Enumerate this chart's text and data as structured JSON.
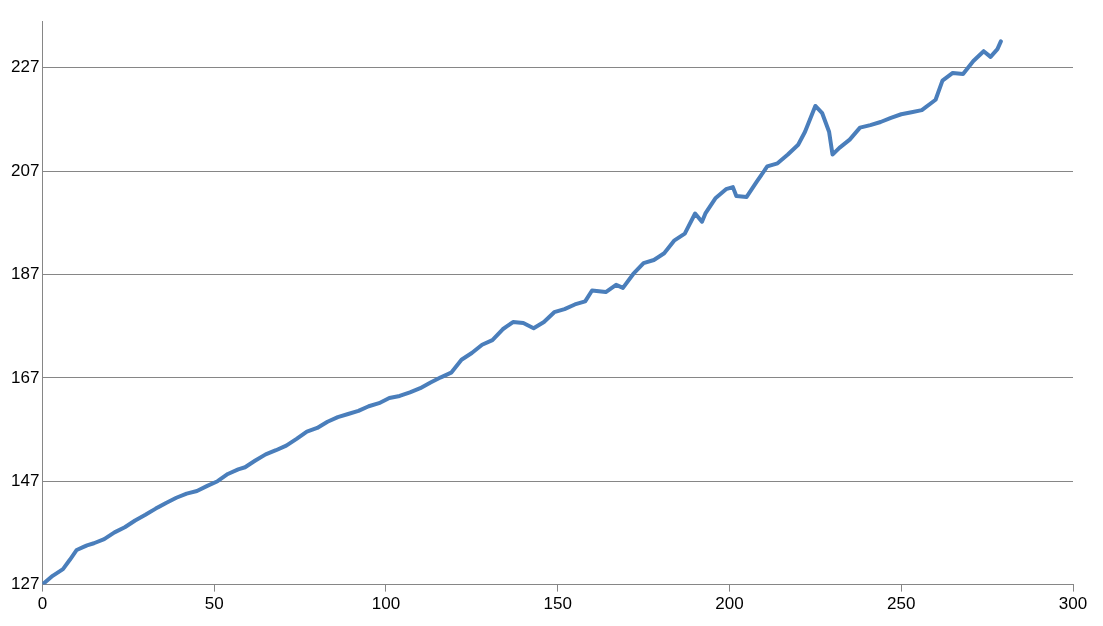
{
  "chart_data": {
    "type": "line",
    "xlim": [
      0,
      300
    ],
    "xticks": [
      0,
      50,
      100,
      150,
      200,
      250,
      300
    ],
    "ylim": [
      127,
      236
    ],
    "yticks": [
      127,
      147,
      167,
      187,
      207,
      227
    ],
    "grid": "y",
    "marker": "none",
    "line_style": "solid",
    "series": [
      {
        "color": "#4a7ebb",
        "x": [
          0,
          3,
          6,
          8,
          10,
          12,
          13,
          15,
          18,
          21,
          24,
          27,
          30,
          33,
          36,
          39,
          42,
          45,
          48,
          51,
          54,
          57,
          59,
          62,
          65,
          68,
          71,
          74,
          77,
          80,
          83,
          86,
          89,
          92,
          95,
          98,
          101,
          104,
          107,
          110,
          113,
          116,
          119,
          122,
          125,
          128,
          131,
          134,
          137,
          140,
          143,
          146,
          149,
          152,
          155,
          158,
          160,
          164,
          167,
          169,
          172,
          175,
          178,
          181,
          184,
          187,
          190,
          192,
          193,
          196,
          199,
          201,
          202,
          205,
          208,
          211,
          214,
          217,
          220,
          222,
          225,
          227,
          229,
          230,
          232,
          235,
          238,
          241,
          244,
          247,
          250,
          253,
          256,
          260,
          262,
          265,
          268,
          271,
          274,
          276,
          278,
          279
        ],
        "values": [
          127,
          128.7,
          130,
          131.8,
          133.7,
          134.3,
          134.6,
          135,
          135.8,
          137.1,
          138.1,
          139.4,
          140.5,
          141.7,
          142.8,
          143.8,
          144.6,
          145.1,
          146.1,
          147,
          148.4,
          149.3,
          149.7,
          151,
          152.2,
          153,
          153.9,
          155.2,
          156.6,
          157.3,
          158.5,
          159.4,
          160,
          160.6,
          161.5,
          162.1,
          163.1,
          163.5,
          164.2,
          165,
          166.1,
          167.1,
          168,
          170.5,
          171.8,
          173.4,
          174.3,
          176.4,
          177.8,
          177.6,
          176.6,
          177.8,
          179.7,
          180.3,
          181.2,
          181.8,
          183.9,
          183.6,
          185,
          184.4,
          187.1,
          189.2,
          189.8,
          191.1,
          193.6,
          194.9,
          198.8,
          197.2,
          198.8,
          201.8,
          203.5,
          203.9,
          202.2,
          202,
          205,
          207.9,
          208.5,
          210.2,
          212.1,
          214.6,
          219.6,
          218.2,
          214.6,
          210.2,
          211.5,
          213.1,
          215.4,
          215.9,
          216.5,
          217.3,
          218,
          218.4,
          218.8,
          220.8,
          224.5,
          226,
          225.8,
          228.3,
          230.2,
          229.1,
          230.6,
          232.1
        ]
      }
    ]
  }
}
